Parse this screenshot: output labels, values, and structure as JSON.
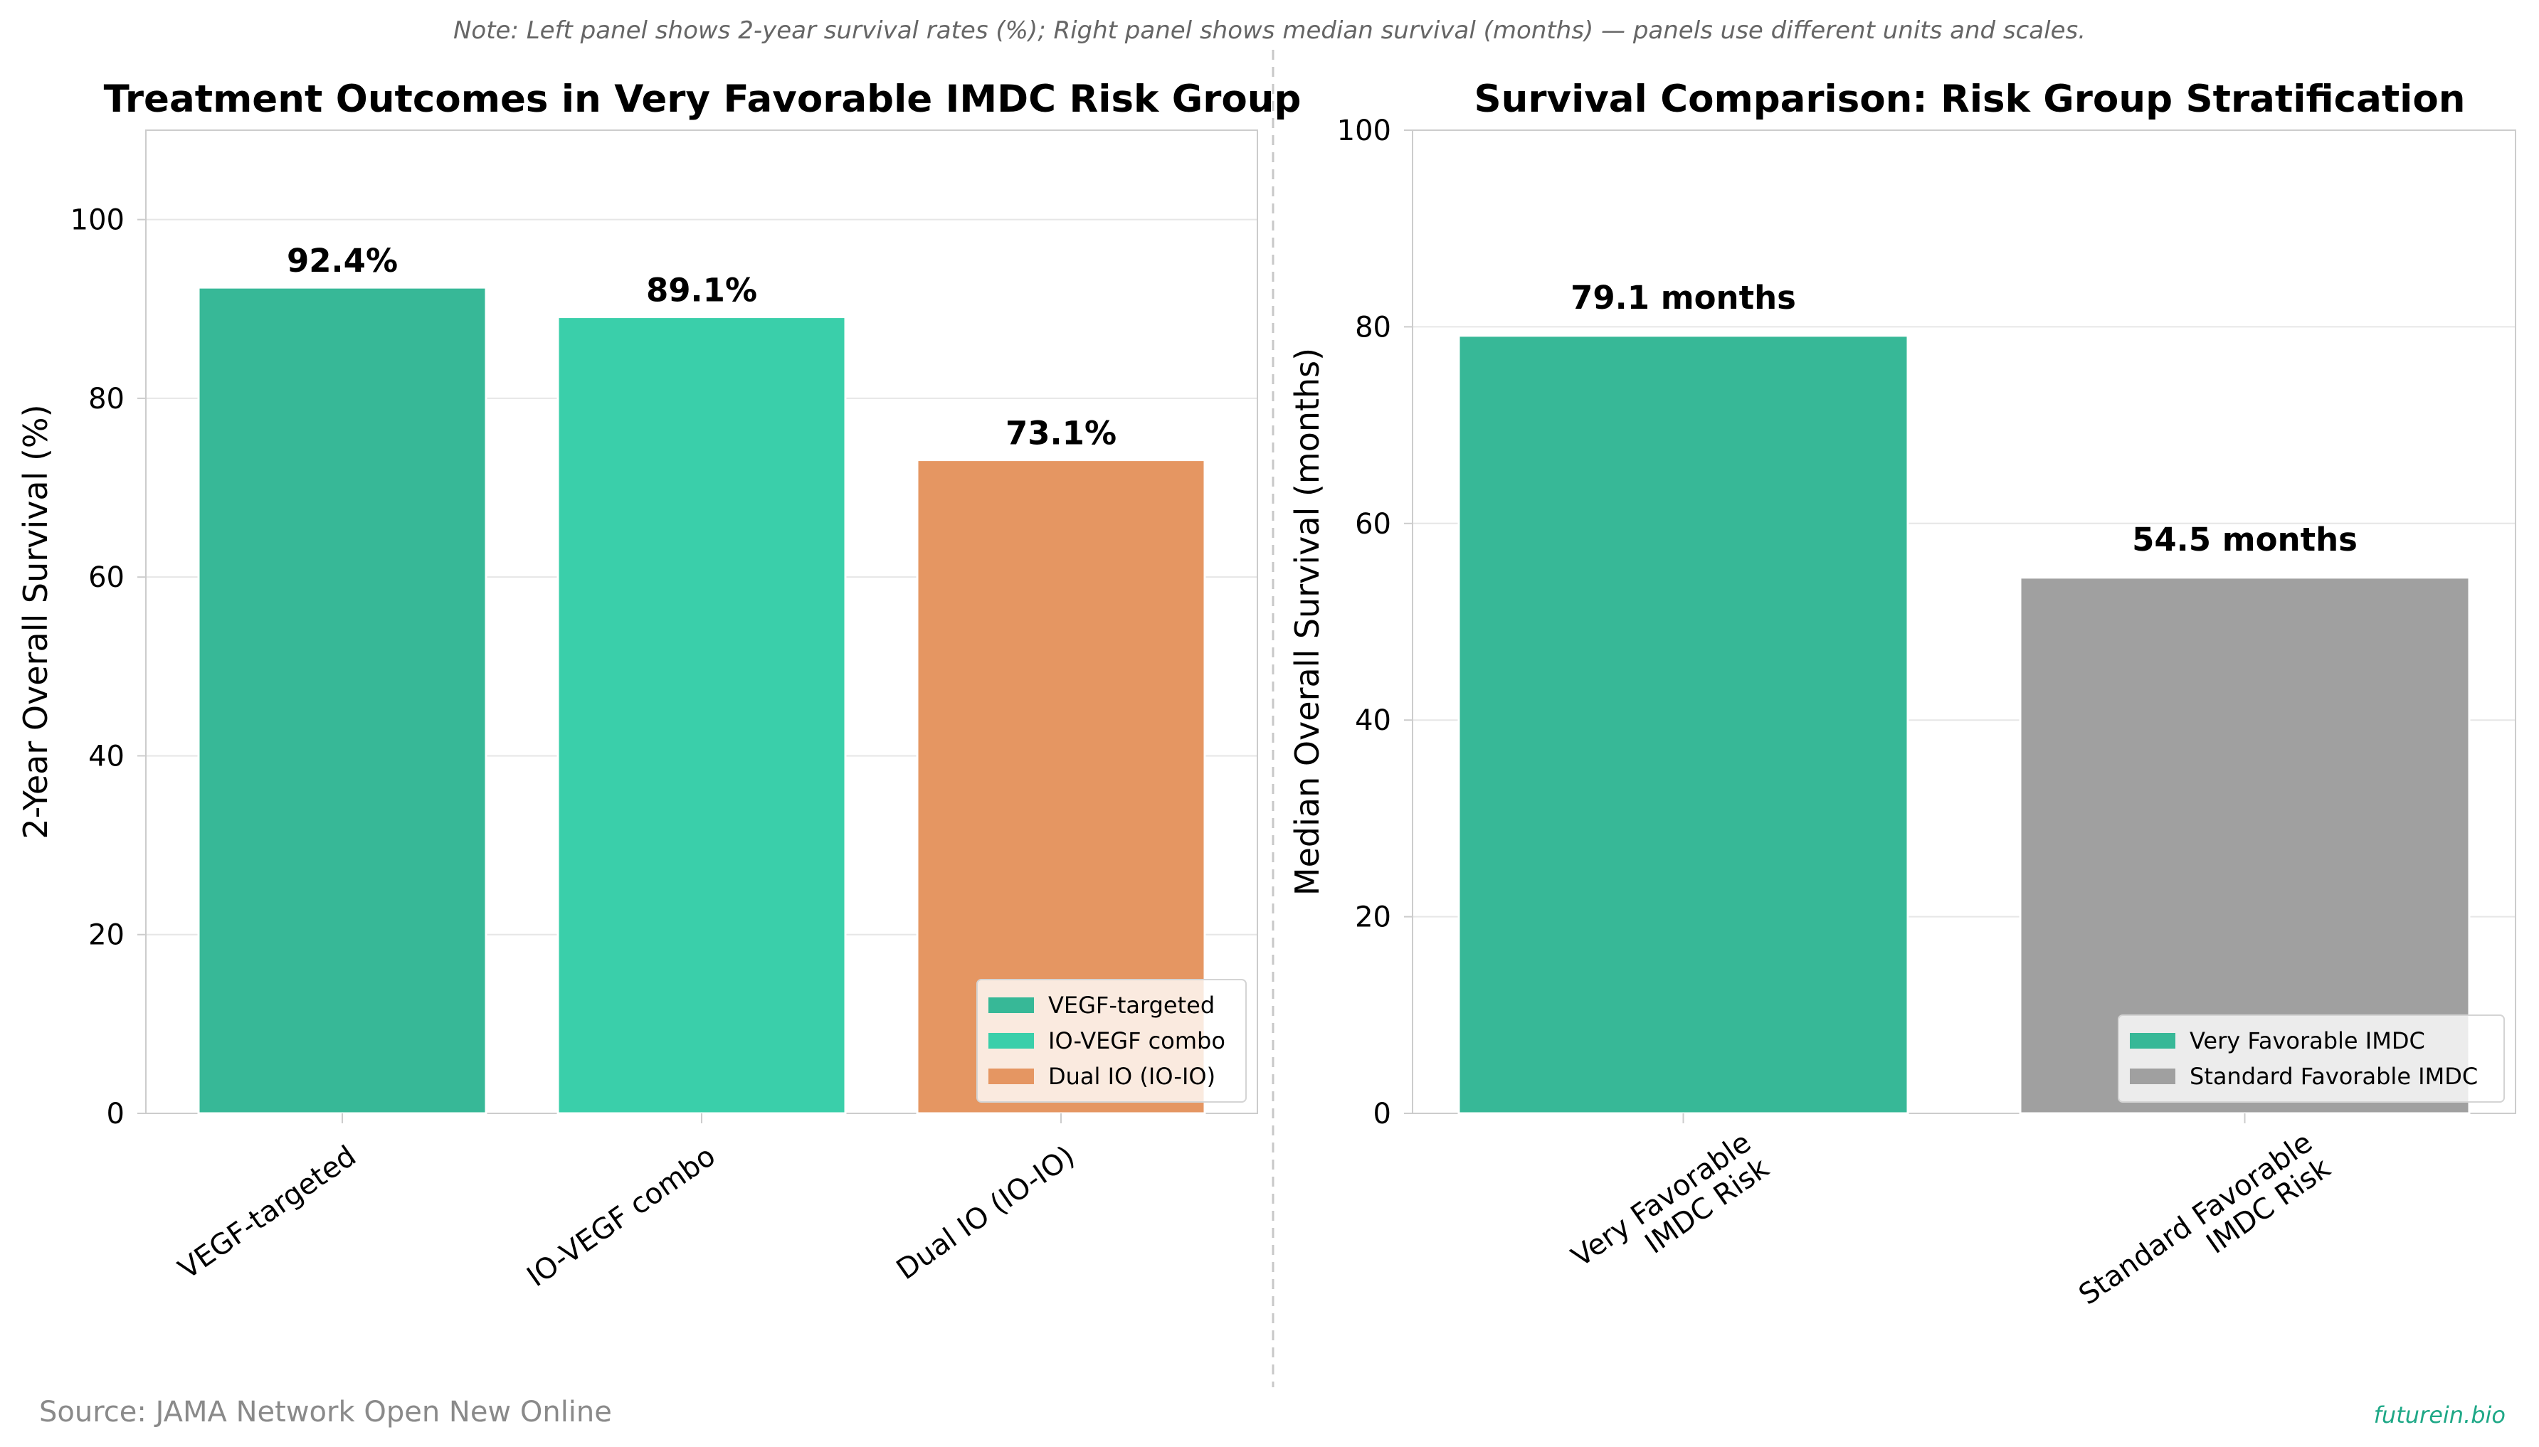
{
  "note": "Note: Left panel shows 2-year survival rates (%); Right panel shows median survival (months) — panels use different units and scales.",
  "source": "Source: JAMA Network Open New Online",
  "brand": "futurein.bio",
  "chart_data": [
    {
      "type": "bar",
      "title": "Treatment Outcomes in Very Favorable IMDC Risk Group",
      "xlabel": "",
      "ylabel": "2-Year Overall Survival (%)",
      "ylim": [
        0,
        110
      ],
      "yticks": [
        0,
        20,
        40,
        60,
        80,
        100
      ],
      "categories": [
        "VEGF-targeted",
        "IO-VEGF combo",
        "Dual IO (IO-IO)"
      ],
      "values": [
        92.4,
        89.1,
        73.1
      ],
      "data_labels": [
        "92.4%",
        "89.1%",
        "73.1%"
      ],
      "colors": [
        "#37b897",
        "#3acfaa",
        "#e59662"
      ],
      "legend": {
        "position": "lower-right",
        "entries": [
          {
            "label": "VEGF-targeted",
            "color": "#37b897"
          },
          {
            "label": "IO-VEGF combo",
            "color": "#3acfaa"
          },
          {
            "label": "Dual IO (IO-IO)",
            "color": "#e59662"
          }
        ]
      },
      "grid": true
    },
    {
      "type": "bar",
      "title": "Survival Comparison: Risk Group Stratification",
      "xlabel": "",
      "ylabel": "Median Overall Survival (months)",
      "ylim": [
        0,
        100
      ],
      "yticks": [
        0,
        20,
        40,
        60,
        80,
        100
      ],
      "categories": [
        [
          "Very Favorable",
          "IMDC Risk"
        ],
        [
          "Standard Favorable",
          "IMDC Risk"
        ]
      ],
      "values": [
        79.1,
        54.5
      ],
      "data_labels": [
        "79.1 months",
        "54.5 months"
      ],
      "colors": [
        "#37b897",
        "#a0a0a0"
      ],
      "legend": {
        "position": "lower-right",
        "entries": [
          {
            "label": "Very Favorable IMDC",
            "color": "#37b897"
          },
          {
            "label": "Standard Favorable IMDC",
            "color": "#a0a0a0"
          }
        ]
      },
      "grid": true
    }
  ]
}
